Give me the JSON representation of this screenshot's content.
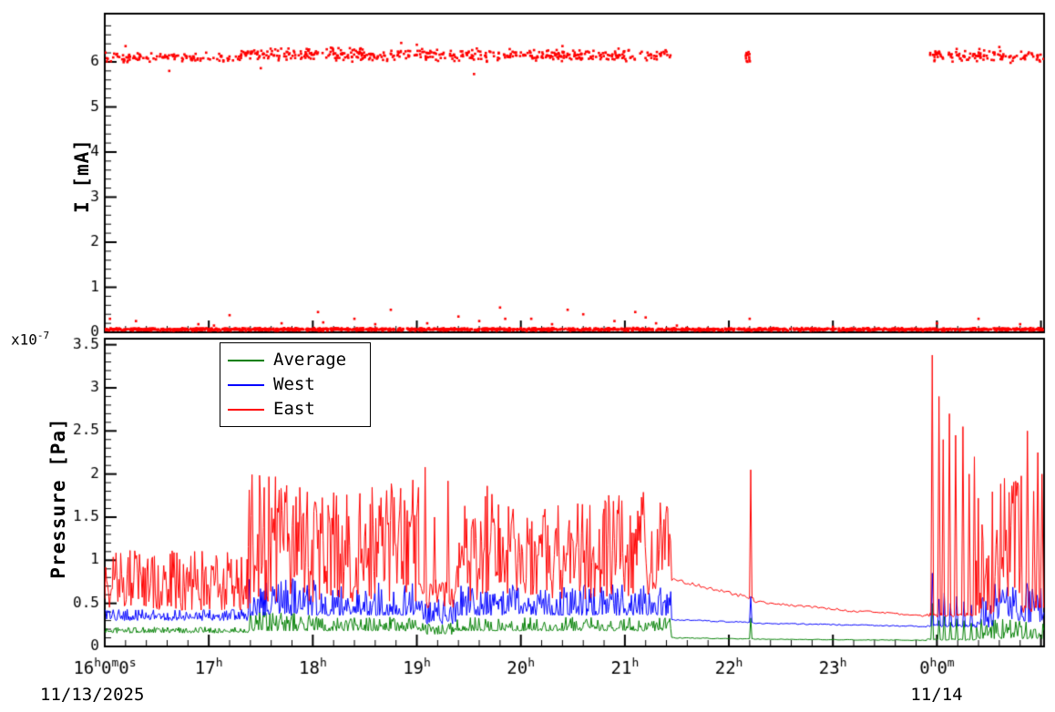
{
  "colors": {
    "axis": "#000000",
    "east": "#ff0000",
    "west": "#0000ff",
    "average": "#007f00",
    "background": "#ffffff"
  },
  "x_axis": {
    "xlim_hours": [
      16,
      25.03
    ],
    "minor_per_hour": 5,
    "ticks": [
      {
        "t": 16,
        "label": "16h0m0s"
      },
      {
        "t": 17,
        "label": "17h"
      },
      {
        "t": 18,
        "label": "18h"
      },
      {
        "t": 19,
        "label": "19h"
      },
      {
        "t": 20,
        "label": "20h"
      },
      {
        "t": 21,
        "label": "21h"
      },
      {
        "t": 22,
        "label": "22h"
      },
      {
        "t": 23,
        "label": "23h"
      },
      {
        "t": 24,
        "label": "0h0m"
      }
    ],
    "dates": {
      "start": "11/13/2025",
      "end": "11/14"
    }
  },
  "chart_data": [
    {
      "type": "scatter",
      "title": "",
      "ylabel": "I [mA]",
      "ylim": [
        0,
        7.07
      ],
      "yticks": [
        0,
        1,
        2,
        3,
        4,
        5,
        6
      ],
      "ytick_labels": [
        "0",
        "1",
        "2",
        "3",
        "4",
        "5",
        "6"
      ],
      "y_minor_step": 0.2,
      "marker_color": "#ff0000",
      "series": [
        {
          "name": "beam-current-high",
          "clusters": [
            {
              "t0": 16.0,
              "t1": 17.3,
              "ylo": 5.98,
              "yhi": 6.22,
              "n": 110
            },
            {
              "t0": 17.3,
              "t1": 18.55,
              "ylo": 6.0,
              "yhi": 6.34,
              "n": 160
            },
            {
              "t0": 18.55,
              "t1": 21.45,
              "ylo": 6.0,
              "yhi": 6.3,
              "n": 310
            },
            {
              "t0": 22.16,
              "t1": 22.22,
              "ylo": 5.95,
              "yhi": 6.25,
              "n": 13
            },
            {
              "t0": 23.92,
              "t1": 25.03,
              "ylo": 5.95,
              "yhi": 6.3,
              "n": 115
            }
          ],
          "outliers": [
            [
              16.62,
              5.8
            ],
            [
              17.5,
              5.86
            ],
            [
              19.55,
              5.73
            ],
            [
              16.2,
              6.35
            ],
            [
              18.85,
              6.42
            ],
            [
              19.0,
              6.38
            ],
            [
              20.4,
              6.35
            ],
            [
              24.6,
              6.33
            ]
          ]
        },
        {
          "name": "beam-current-low",
          "band": {
            "t0": 16.0,
            "t1": 25.03,
            "ylo": 0.03,
            "yhi": 0.1,
            "n": 1700
          },
          "outliers": [
            [
              16.05,
              0.3
            ],
            [
              16.3,
              0.25
            ],
            [
              16.9,
              0.18
            ],
            [
              17.05,
              0.15
            ],
            [
              17.2,
              0.38
            ],
            [
              17.7,
              0.2
            ],
            [
              18.05,
              0.45
            ],
            [
              18.1,
              0.22
            ],
            [
              18.4,
              0.3
            ],
            [
              18.6,
              0.18
            ],
            [
              18.75,
              0.5
            ],
            [
              19.1,
              0.2
            ],
            [
              19.4,
              0.35
            ],
            [
              19.6,
              0.25
            ],
            [
              19.8,
              0.55
            ],
            [
              19.85,
              0.3
            ],
            [
              20.1,
              0.3
            ],
            [
              20.3,
              0.18
            ],
            [
              20.45,
              0.5
            ],
            [
              20.6,
              0.4
            ],
            [
              20.9,
              0.25
            ],
            [
              21.1,
              0.45
            ],
            [
              21.2,
              0.33
            ],
            [
              21.3,
              0.2
            ],
            [
              21.5,
              0.15
            ],
            [
              22.2,
              0.3
            ],
            [
              23.0,
              0.12
            ],
            [
              24.0,
              0.2
            ],
            [
              24.4,
              0.3
            ],
            [
              24.8,
              0.18
            ]
          ]
        }
      ]
    },
    {
      "type": "line",
      "title": "",
      "ylabel": "Pressure [Pa]",
      "scale_label": {
        "prefix": "x10",
        "exponent": "-7"
      },
      "ylim": [
        0,
        3.57
      ],
      "yticks": [
        0,
        0.5,
        1,
        1.5,
        2,
        2.5,
        3,
        3.5
      ],
      "ytick_labels": [
        "0",
        "0.5",
        "1",
        "1.5",
        "2",
        "2.5",
        "3",
        "3.5"
      ],
      "y_minor_step": 0.1,
      "legend": {
        "position": "top-left",
        "entries": [
          {
            "label": "Average",
            "color": "#007f00"
          },
          {
            "label": "West",
            "color": "#0000ff"
          },
          {
            "label": "East",
            "color": "#ff0000"
          }
        ]
      },
      "series": [
        {
          "name": "Average",
          "color": "#007f00",
          "segments": [
            {
              "type": "band",
              "t0": 16.0,
              "t1": 17.38,
              "lo": 0.155,
              "hi": 0.225,
              "shape": 1.4
            },
            {
              "type": "band",
              "t0": 17.38,
              "t1": 18.12,
              "lo": 0.18,
              "hi": 0.4,
              "shape": 2.0
            },
            {
              "type": "band",
              "t0": 18.12,
              "t1": 19.02,
              "lo": 0.18,
              "hi": 0.35,
              "shape": 2.1
            },
            {
              "type": "band",
              "t0": 19.02,
              "t1": 19.38,
              "lo": 0.14,
              "hi": 0.28,
              "shape": 1.8
            },
            {
              "type": "band",
              "t0": 19.38,
              "t1": 21.45,
              "lo": 0.18,
              "hi": 0.34,
              "shape": 2.0
            },
            {
              "type": "smooth",
              "t0": 21.45,
              "t1": 22.18,
              "y0": 0.1,
              "y1": 0.088,
              "jit": 0.005
            },
            {
              "type": "spiketrain",
              "t0": 22.18,
              "t1": 22.24,
              "base": 0.088,
              "jit": 0.004,
              "w": 0.012,
              "spikes": [
                [
                  22.21,
                  0.33
                ]
              ]
            },
            {
              "type": "smooth",
              "t0": 22.24,
              "t1": 23.9,
              "y0": 0.085,
              "y1": 0.072,
              "jit": 0.004
            },
            {
              "type": "spiketrain",
              "t0": 23.9,
              "t1": 24.38,
              "base": 0.08,
              "jit": 0.01,
              "w": 0.013,
              "spikes": [
                [
                  23.955,
                  0.5
                ],
                [
                  24.02,
                  0.3
                ],
                [
                  24.07,
                  0.35
                ],
                [
                  24.13,
                  0.28
                ],
                [
                  24.19,
                  0.32
                ],
                [
                  24.26,
                  0.3
                ],
                [
                  24.33,
                  0.27
                ]
              ]
            },
            {
              "type": "band",
              "t0": 24.38,
              "t1": 25.03,
              "lo": 0.09,
              "hi": 0.33,
              "shape": 2.0
            }
          ]
        },
        {
          "name": "West",
          "color": "#0000ff",
          "segments": [
            {
              "type": "band",
              "t0": 16.0,
              "t1": 17.38,
              "lo": 0.3,
              "hi": 0.43,
              "shape": 1.8
            },
            {
              "type": "band",
              "t0": 17.38,
              "t1": 18.12,
              "lo": 0.36,
              "hi": 0.8,
              "shape": 1.8
            },
            {
              "type": "band",
              "t0": 18.12,
              "t1": 19.02,
              "lo": 0.36,
              "hi": 0.74,
              "shape": 1.9
            },
            {
              "type": "band",
              "t0": 19.02,
              "t1": 19.38,
              "lo": 0.26,
              "hi": 0.55,
              "shape": 1.6
            },
            {
              "type": "band",
              "t0": 19.38,
              "t1": 21.45,
              "lo": 0.36,
              "hi": 0.72,
              "shape": 1.9
            },
            {
              "type": "smooth",
              "t0": 21.45,
              "t1": 22.18,
              "y0": 0.31,
              "y1": 0.28,
              "jit": 0.008
            },
            {
              "type": "spiketrain",
              "t0": 22.18,
              "t1": 22.24,
              "base": 0.28,
              "jit": 0.006,
              "w": 0.012,
              "spikes": [
                [
                  22.21,
                  0.58
                ]
              ]
            },
            {
              "type": "smooth",
              "t0": 22.24,
              "t1": 23.9,
              "y0": 0.27,
              "y1": 0.232,
              "jit": 0.007
            },
            {
              "type": "spiketrain",
              "t0": 23.9,
              "t1": 24.38,
              "base": 0.24,
              "jit": 0.02,
              "w": 0.013,
              "spikes": [
                [
                  23.955,
                  0.85
                ],
                [
                  24.02,
                  0.55
                ],
                [
                  24.07,
                  0.62
                ],
                [
                  24.13,
                  0.5
                ],
                [
                  24.19,
                  0.58
                ],
                [
                  24.26,
                  0.52
                ],
                [
                  24.33,
                  0.48
                ]
              ]
            },
            {
              "type": "band",
              "t0": 24.38,
              "t1": 24.55,
              "lo": 0.22,
              "hi": 0.6,
              "shape": 1.8
            },
            {
              "type": "band",
              "t0": 24.55,
              "t1": 24.82,
              "lo": 0.3,
              "hi": 0.8,
              "shape": 1.6
            },
            {
              "type": "band",
              "t0": 24.82,
              "t1": 25.03,
              "lo": 0.28,
              "hi": 0.75,
              "shape": 1.6
            }
          ]
        },
        {
          "name": "East",
          "color": "#ff0000",
          "segments": [
            {
              "type": "band",
              "t0": 16.0,
              "t1": 17.38,
              "lo": 0.42,
              "hi": 1.12,
              "shape": 1.25
            },
            {
              "type": "band",
              "t0": 17.38,
              "t1": 18.12,
              "lo": 0.5,
              "hi": 2.0,
              "shape": 1.25
            },
            {
              "type": "band",
              "t0": 18.12,
              "t1": 18.62,
              "lo": 0.52,
              "hi": 1.85,
              "shape": 1.45
            },
            {
              "type": "band",
              "t0": 18.62,
              "t1": 19.02,
              "lo": 0.5,
              "hi": 1.95,
              "shape": 1.15
            },
            {
              "type": "spiketrain",
              "t0": 19.02,
              "t1": 19.38,
              "base": 0.62,
              "jit": 0.18,
              "w": 0.012,
              "spikes": [
                [
                  19.08,
                  2.08
                ],
                [
                  19.17,
                  1.5
                ],
                [
                  19.3,
                  1.92
                ]
              ]
            },
            {
              "type": "band",
              "t0": 19.38,
              "t1": 19.8,
              "lo": 0.5,
              "hi": 1.9,
              "shape": 1.25
            },
            {
              "type": "band",
              "t0": 19.8,
              "t1": 20.8,
              "lo": 0.55,
              "hi": 1.68,
              "shape": 1.15
            },
            {
              "type": "band",
              "t0": 20.8,
              "t1": 21.45,
              "lo": 0.58,
              "hi": 1.8,
              "shape": 1.15
            },
            {
              "type": "smooth",
              "t0": 21.45,
              "t1": 22.18,
              "y0": 0.78,
              "y1": 0.57,
              "jit": 0.02
            },
            {
              "type": "spiketrain",
              "t0": 22.18,
              "t1": 22.24,
              "base": 0.56,
              "jit": 0.01,
              "w": 0.012,
              "spikes": [
                [
                  22.21,
                  2.05
                ]
              ]
            },
            {
              "type": "smooth",
              "t0": 22.24,
              "t1": 23.1,
              "y0": 0.52,
              "y1": 0.42,
              "jit": 0.015
            },
            {
              "type": "smooth",
              "t0": 23.1,
              "t1": 23.9,
              "y0": 0.42,
              "y1": 0.355,
              "jit": 0.012
            },
            {
              "type": "spiketrain",
              "t0": 23.9,
              "t1": 24.38,
              "base": 0.36,
              "jit": 0.03,
              "w": 0.013,
              "spikes": [
                [
                  23.955,
                  3.38
                ],
                [
                  24.02,
                  2.9
                ],
                [
                  24.06,
                  2.4
                ],
                [
                  24.12,
                  2.7
                ],
                [
                  24.18,
                  2.45
                ],
                [
                  24.25,
                  2.55
                ],
                [
                  24.31,
                  2.0
                ],
                [
                  24.36,
                  2.2
                ]
              ]
            },
            {
              "type": "band",
              "t0": 24.38,
              "t1": 24.55,
              "lo": 0.38,
              "hi": 1.95,
              "shape": 1.7
            },
            {
              "type": "band",
              "t0": 24.55,
              "t1": 24.82,
              "lo": 0.5,
              "hi": 2.0,
              "shape": 1.1
            },
            {
              "type": "spiketrain",
              "t0": 24.82,
              "t1": 25.03,
              "base": 0.45,
              "jit": 0.08,
              "w": 0.015,
              "spikes": [
                [
                  24.87,
                  2.5
                ],
                [
                  24.93,
                  1.8
                ],
                [
                  24.97,
                  2.25
                ],
                [
                  25.01,
                  2.0
                ]
              ]
            }
          ]
        }
      ]
    }
  ]
}
